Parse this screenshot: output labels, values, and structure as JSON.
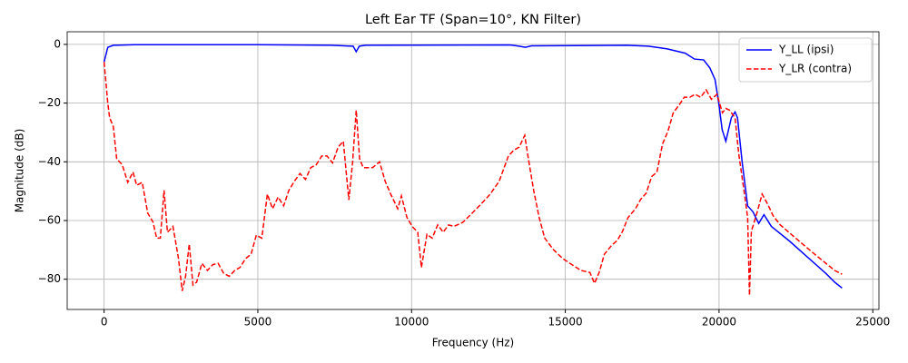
{
  "chart_data": {
    "type": "line",
    "title": "Left Ear TF (Span=10°, KN Filter)",
    "x_label": "Frequency (Hz)",
    "y_label": "Magnitude (dB)",
    "xlim": [
      -1200,
      25200
    ],
    "ylim": [
      -90.3,
      4.3
    ],
    "xticks": [
      0,
      5000,
      10000,
      15000,
      20000,
      25000
    ],
    "yticks": [
      {
        "value": 0,
        "label": "0"
      },
      {
        "value": -20,
        "label": "−20"
      },
      {
        "value": -40,
        "label": "−40"
      },
      {
        "value": -60,
        "label": "−60"
      },
      {
        "value": -80,
        "label": "−80"
      }
    ],
    "grid": true,
    "legend": "upper right",
    "series": [
      {
        "name": "Y_LL (ipsi)",
        "color": "#0000ff",
        "dash": "solid",
        "x": [
          0,
          120,
          300,
          1000,
          5000,
          7400,
          7800,
          8100,
          8200,
          8300,
          8500,
          13200,
          13500,
          13700,
          13900,
          17000,
          17700,
          18300,
          18900,
          19200,
          19500,
          19700,
          19870,
          19990,
          20100,
          20220,
          20400,
          20520,
          20600,
          20750,
          20930,
          21100,
          21290,
          21460,
          21700,
          22290,
          22880,
          23470,
          23760,
          24000
        ],
        "values": [
          -6,
          -1,
          -0.3,
          -0.1,
          -0.1,
          -0.3,
          -0.5,
          -0.6,
          -2.5,
          -0.6,
          -0.3,
          -0.2,
          -0.6,
          -1,
          -0.5,
          -0.3,
          -0.6,
          -1.5,
          -3,
          -5,
          -5.3,
          -8,
          -12,
          -20,
          -29,
          -33,
          -25,
          -23,
          -25,
          -40,
          -55,
          -57,
          -61,
          -58,
          -62,
          -67,
          -72.5,
          -78,
          -81,
          -83
        ]
      },
      {
        "name": "Y_LR (contra)",
        "color": "#ff0000",
        "dash": "dashed",
        "x": [
          0,
          120,
          180,
          300,
          410,
          590,
          770,
          940,
          1060,
          1240,
          1420,
          1590,
          1710,
          1830,
          1950,
          2060,
          2240,
          2420,
          2540,
          2650,
          2770,
          2890,
          3010,
          3180,
          3360,
          3540,
          3710,
          3890,
          4070,
          4250,
          4420,
          4600,
          4780,
          4950,
          5130,
          5310,
          5480,
          5660,
          5840,
          6010,
          6190,
          6370,
          6550,
          6720,
          6900,
          7080,
          7250,
          7430,
          7610,
          7780,
          7960,
          8080,
          8200,
          8310,
          8430,
          8730,
          8960,
          9140,
          9320,
          9550,
          9670,
          9850,
          10020,
          10200,
          10320,
          10500,
          10670,
          10850,
          11030,
          11200,
          11380,
          11670,
          11970,
          12260,
          12560,
          12850,
          13150,
          13330,
          13500,
          13680,
          13800,
          13970,
          14150,
          14330,
          14620,
          14920,
          15210,
          15510,
          15800,
          15950,
          16100,
          16270,
          16510,
          16690,
          16860,
          17040,
          17280,
          17450,
          17630,
          17810,
          17980,
          18160,
          18340,
          18510,
          18690,
          18870,
          19050,
          19220,
          19400,
          19580,
          19750,
          19930,
          20110,
          20220,
          20340,
          20520,
          20640,
          20810,
          20930,
          20990,
          21050,
          21230,
          21400,
          21580,
          21760,
          21990,
          22580,
          23170,
          23760,
          24000
        ],
        "values": [
          -6,
          -20,
          -25,
          -28,
          -39,
          -41,
          -47,
          -43.5,
          -48,
          -47,
          -57.5,
          -60.5,
          -66,
          -66,
          -49.7,
          -64,
          -62,
          -73,
          -84,
          -79,
          -68,
          -82,
          -81,
          -74.6,
          -77,
          -75,
          -74.6,
          -78,
          -79,
          -77,
          -76,
          -73,
          -71.5,
          -65,
          -66,
          -51,
          -56,
          -52,
          -55,
          -49.7,
          -46.6,
          -44,
          -46,
          -42,
          -41,
          -38,
          -38,
          -40.4,
          -35,
          -33,
          -53,
          -40.4,
          -22.4,
          -39,
          -42,
          -42,
          -40,
          -46.6,
          -51,
          -56,
          -51.6,
          -59,
          -62,
          -64,
          -76,
          -64.7,
          -66,
          -61.5,
          -64,
          -61.5,
          -62,
          -60.6,
          -57.5,
          -54.4,
          -51,
          -46.6,
          -38,
          -36,
          -35,
          -31,
          -39,
          -49.7,
          -59,
          -66,
          -70,
          -73,
          -75,
          -77,
          -77.7,
          -81.4,
          -77.7,
          -71.5,
          -68.4,
          -66.8,
          -63.7,
          -59,
          -56,
          -52.8,
          -50.7,
          -45,
          -43.5,
          -34,
          -29.5,
          -23.3,
          -20.8,
          -18,
          -18,
          -17,
          -18,
          -15.5,
          -18.7,
          -17,
          -23.3,
          -21.8,
          -22.4,
          -25,
          -37.3,
          -49.7,
          -59,
          -85.5,
          -63.7,
          -57.5,
          -51,
          -54.4,
          -58.4,
          -61.5,
          -66.8,
          -72,
          -77,
          -78.3
        ]
      }
    ]
  }
}
